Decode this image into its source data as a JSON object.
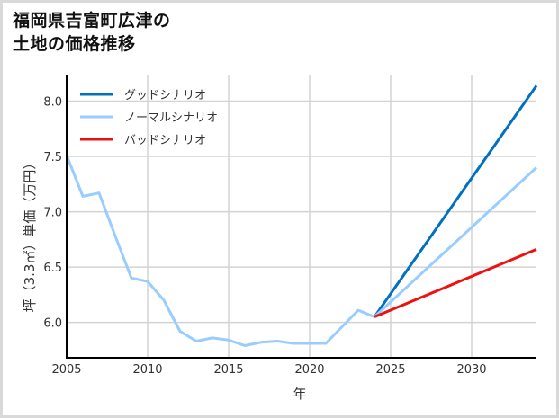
{
  "title": {
    "line1": "福岡県吉富町広津の",
    "line2": "土地の価格推移"
  },
  "chart_data": {
    "type": "line",
    "title": "福岡県吉富町広津の土地の価格推移",
    "xlabel": "年",
    "ylabel": "坪（3.3㎡）単価（万円）",
    "xlim": [
      2005,
      2034
    ],
    "ylim": [
      5.68,
      8.24
    ],
    "xticks": [
      2005,
      2010,
      2015,
      2020,
      2025,
      2030
    ],
    "yticks": [
      6.0,
      6.5,
      7.0,
      7.5,
      8.0
    ],
    "ytick_labels": [
      "6.0",
      "6.5",
      "7.0",
      "7.5",
      "8.0"
    ],
    "grid": true,
    "legend_position": "upper left",
    "series": [
      {
        "name": "ノーマルシナリオ",
        "role": "historical",
        "color": "#99ccff",
        "x": [
          2005,
          2006,
          2007,
          2008,
          2009,
          2010,
          2011,
          2012,
          2013,
          2014,
          2015,
          2016,
          2017,
          2018,
          2019,
          2020,
          2021,
          2022,
          2023,
          2024
        ],
        "values": [
          7.51,
          7.14,
          7.17,
          6.78,
          6.4,
          6.37,
          6.2,
          5.92,
          5.83,
          5.86,
          5.84,
          5.79,
          5.82,
          5.83,
          5.81,
          5.81,
          5.81,
          5.96,
          6.11,
          6.05
        ]
      },
      {
        "name": "グッドシナリオ",
        "color": "#0070c0",
        "x": [
          2024,
          2034
        ],
        "values": [
          6.05,
          8.14
        ]
      },
      {
        "name": "ノーマルシナリオ",
        "color": "#99ccff",
        "x": [
          2024,
          2034
        ],
        "values": [
          6.05,
          7.4
        ]
      },
      {
        "name": "バッドシナリオ",
        "color": "#ee1111",
        "x": [
          2024,
          2034
        ],
        "values": [
          6.05,
          6.66
        ]
      }
    ],
    "legend": [
      {
        "label": "グッドシナリオ",
        "color": "#0070c0"
      },
      {
        "label": "ノーマルシナリオ",
        "color": "#99ccff"
      },
      {
        "label": "バッドシナリオ",
        "color": "#ee1111"
      }
    ]
  }
}
